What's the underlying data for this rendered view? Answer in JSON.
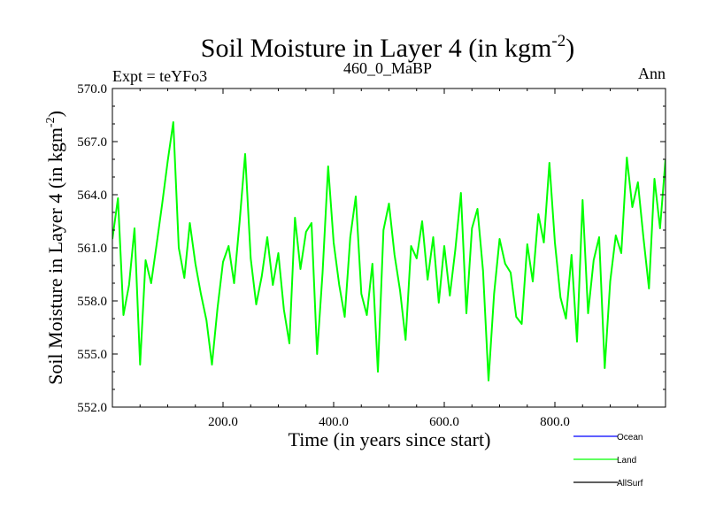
{
  "chart_data": {
    "type": "line",
    "title": {
      "main": "Soil Moisture in Layer 4 (in kgm",
      "sup": "-2",
      "close": ")"
    },
    "subtitle_left": "Expt = teYFo3",
    "subtitle_center": "460_0_MaBP",
    "subtitle_right": "Ann",
    "xlabel": "Time (in years since start)",
    "ylabel": {
      "main": "Soil Moisture in Layer 4 (in kgm",
      "sup": "-2",
      "close": ")"
    },
    "xlim": [
      0,
      1000
    ],
    "ylim": [
      552.0,
      570.0
    ],
    "xticks": [
      200,
      400,
      600,
      800
    ],
    "xtick_labels": [
      "200.0",
      "400.0",
      "600.0",
      "800.0"
    ],
    "yticks": [
      552,
      555,
      558,
      561,
      564,
      567,
      570
    ],
    "ytick_labels": [
      "552.0",
      "555.0",
      "558.0",
      "561.0",
      "564.0",
      "567.0",
      "570.0"
    ],
    "legend": [
      {
        "name": "Ocean",
        "color": "#0000ff"
      },
      {
        "name": "Land",
        "color": "#00ff00"
      },
      {
        "name": "AllSurf",
        "color": "#000000"
      }
    ],
    "series": [
      {
        "name": "Land",
        "color": "#00ff00",
        "x_start": 0,
        "x_step": 10,
        "values": [
          561.5,
          563.8,
          557.2,
          558.9,
          562.1,
          554.4,
          560.3,
          559.0,
          561.2,
          563.5,
          565.9,
          568.1,
          561.0,
          559.3,
          562.4,
          560.1,
          558.4,
          556.9,
          554.4,
          557.6,
          560.2,
          561.1,
          559.0,
          562.5,
          566.3,
          560.4,
          557.8,
          559.4,
          561.6,
          558.9,
          560.7,
          557.5,
          555.6,
          562.7,
          559.8,
          561.9,
          562.4,
          555.0,
          559.6,
          565.6,
          561.3,
          558.9,
          557.1,
          561.6,
          563.9,
          558.4,
          557.2,
          560.1,
          554.0,
          562.0,
          563.5,
          560.6,
          558.6,
          555.8,
          561.1,
          560.4,
          562.5,
          559.2,
          561.6,
          557.9,
          561.1,
          558.3,
          560.9,
          564.1,
          557.3,
          562.1,
          563.2,
          559.7,
          553.5,
          558.4,
          561.5,
          560.1,
          559.6,
          557.1,
          556.7,
          561.2,
          559.1,
          562.9,
          561.3,
          565.8,
          561.3,
          558.2,
          557.0,
          560.6,
          555.7,
          563.7,
          557.3,
          560.3,
          561.6,
          554.2,
          559.1,
          561.7,
          560.7,
          566.1,
          563.3,
          564.7,
          561.6,
          558.7,
          564.9,
          562.1,
          566.0
        ]
      }
    ]
  }
}
